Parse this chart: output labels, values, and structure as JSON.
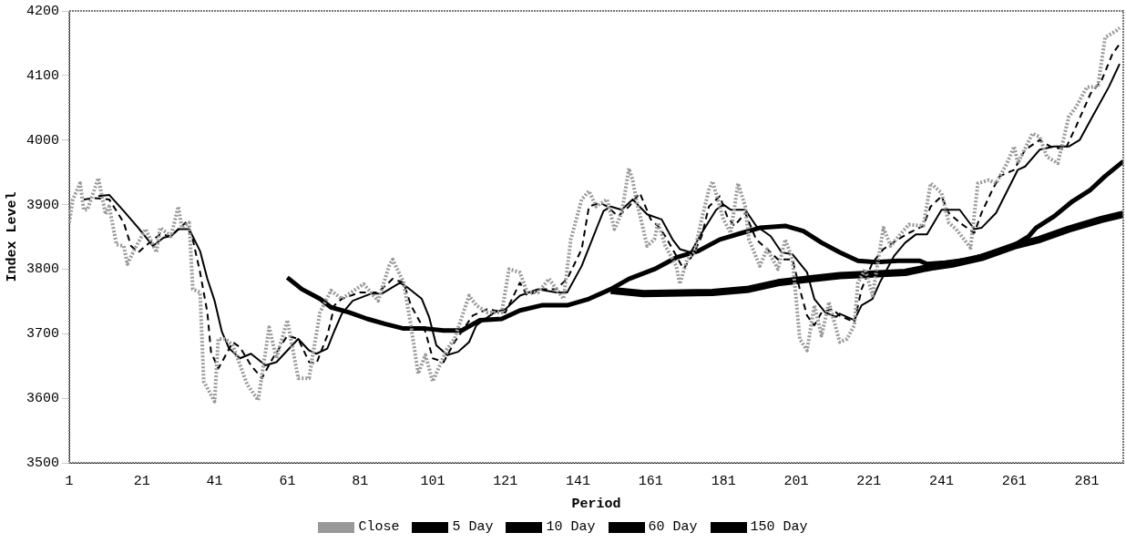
{
  "chart_data": {
    "type": "line",
    "xlabel": "Period",
    "ylabel": "Index Level",
    "xlim": [
      1,
      291
    ],
    "xticks": [
      1,
      21,
      41,
      61,
      81,
      101,
      121,
      141,
      161,
      181,
      201,
      221,
      241,
      261,
      281
    ],
    "ylim": [
      3500,
      4200
    ],
    "yticks": [
      3500,
      3600,
      3700,
      3800,
      3900,
      4000,
      4100,
      4200
    ],
    "grid": false,
    "legend": "bottom",
    "marker": "none",
    "series": [
      {
        "name": "Close",
        "color": "#999999",
        "line_style": "dotted",
        "x": [
          1,
          2,
          4,
          5,
          6,
          9,
          11,
          12,
          14,
          16,
          17,
          19,
          22,
          25,
          26,
          29,
          31,
          32,
          34,
          35,
          37,
          38,
          41,
          42,
          44,
          46,
          50,
          53,
          56,
          58,
          61,
          64,
          67,
          68,
          70,
          73,
          76,
          82,
          86,
          89,
          90,
          93,
          95,
          97,
          99,
          101,
          105,
          107,
          111,
          113,
          116,
          120,
          122,
          125,
          127,
          130,
          133,
          137,
          139,
          142,
          144,
          146,
          149,
          151,
          153,
          155,
          156,
          157,
          160,
          162,
          163,
          165,
          168,
          169,
          171,
          173,
          175,
          177,
          178,
          181,
          183,
          185,
          187,
          188,
          191,
          193,
          196,
          198,
          200,
          202,
          204,
          206,
          208,
          210,
          213,
          215,
          217,
          218,
          220,
          222,
          225,
          227,
          230,
          232,
          236,
          238,
          241,
          243,
          245,
          249,
          251,
          254,
          256,
          259,
          261,
          262,
          266,
          268,
          270,
          273,
          276,
          278,
          281,
          284,
          286,
          289,
          290
        ],
        "values": [
          3872,
          3908,
          3933,
          3892,
          3892,
          3941,
          3885,
          3897,
          3838,
          3836,
          3808,
          3831,
          3862,
          3826,
          3864,
          3851,
          3897,
          3864,
          3872,
          3769,
          3764,
          3626,
          3595,
          3692,
          3692,
          3682,
          3621,
          3597,
          3710,
          3662,
          3721,
          3631,
          3631,
          3667,
          3733,
          3767,
          3754,
          3777,
          3751,
          3805,
          3815,
          3779,
          3713,
          3638,
          3667,
          3626,
          3677,
          3692,
          3759,
          3744,
          3733,
          3733,
          3800,
          3795,
          3764,
          3764,
          3785,
          3754,
          3846,
          3908,
          3921,
          3897,
          3908,
          3862,
          3887,
          3956,
          3938,
          3908,
          3836,
          3846,
          3872,
          3836,
          3805,
          3777,
          3815,
          3826,
          3877,
          3923,
          3936,
          3877,
          3856,
          3933,
          3897,
          3846,
          3805,
          3831,
          3800,
          3846,
          3815,
          3692,
          3674,
          3744,
          3697,
          3749,
          3687,
          3692,
          3713,
          3779,
          3800,
          3759,
          3864,
          3836,
          3856,
          3869,
          3867,
          3933,
          3918,
          3872,
          3862,
          3833,
          3933,
          3938,
          3933,
          3964,
          3990,
          3964,
          4010,
          4005,
          3974,
          3964,
          4036,
          4051,
          4082,
          4082,
          4159,
          4169,
          4174
        ]
      },
      {
        "name": "5 Day",
        "color": "#000000",
        "line_style": "dashed",
        "x": [
          5,
          8,
          12,
          16,
          18,
          20,
          22,
          26,
          29,
          33,
          35,
          37,
          39,
          40,
          42,
          43,
          46,
          48,
          51,
          54,
          57,
          61,
          64,
          67,
          69,
          72,
          74,
          76,
          81,
          86,
          90,
          93,
          95,
          99,
          101,
          104,
          107,
          112,
          116,
          121,
          125,
          127,
          131,
          135,
          138,
          142,
          144,
          147,
          149,
          152,
          155,
          158,
          161,
          163,
          165,
          168,
          170,
          173,
          175,
          177,
          180,
          182,
          184,
          187,
          190,
          194,
          196,
          200,
          202,
          204,
          206,
          208,
          211,
          213,
          217,
          219,
          222,
          225,
          229,
          232,
          236,
          238,
          241,
          243,
          246,
          250,
          252,
          255,
          257,
          261,
          264,
          268,
          271,
          275,
          278,
          282,
          285,
          288,
          290
        ],
        "values": [
          3908,
          3910,
          3908,
          3872,
          3836,
          3826,
          3836,
          3854,
          3851,
          3872,
          3846,
          3795,
          3733,
          3672,
          3646,
          3656,
          3687,
          3679,
          3651,
          3631,
          3662,
          3697,
          3692,
          3656,
          3654,
          3697,
          3744,
          3754,
          3764,
          3764,
          3785,
          3779,
          3744,
          3703,
          3662,
          3656,
          3687,
          3728,
          3738,
          3733,
          3779,
          3759,
          3769,
          3769,
          3785,
          3831,
          3897,
          3903,
          3897,
          3882,
          3897,
          3918,
          3877,
          3867,
          3851,
          3821,
          3800,
          3826,
          3851,
          3897,
          3913,
          3882,
          3867,
          3887,
          3846,
          3826,
          3815,
          3815,
          3769,
          3728,
          3713,
          3733,
          3738,
          3728,
          3718,
          3769,
          3810,
          3831,
          3846,
          3856,
          3867,
          3897,
          3913,
          3887,
          3872,
          3856,
          3887,
          3923,
          3944,
          3954,
          3985,
          4000,
          3990,
          3985,
          4021,
          4072,
          4092,
          4133,
          4149
        ]
      },
      {
        "name": "10 Day",
        "color": "#000000",
        "line_style": "solid",
        "x": [
          9,
          12,
          16,
          20,
          24,
          27,
          29,
          31,
          34,
          37,
          39,
          41,
          43,
          45,
          48,
          51,
          55,
          58,
          61,
          64,
          67,
          69,
          72,
          74,
          76,
          79,
          84,
          87,
          92,
          94,
          98,
          100,
          102,
          105,
          108,
          111,
          113,
          118,
          121,
          125,
          130,
          135,
          138,
          142,
          146,
          148,
          150,
          153,
          156,
          160,
          164,
          167,
          169,
          172,
          175,
          179,
          181,
          183,
          187,
          190,
          194,
          197,
          200,
          204,
          206,
          209,
          212,
          213,
          217,
          219,
          222,
          224,
          228,
          231,
          234,
          237,
          241,
          246,
          250,
          252,
          256,
          262,
          264,
          268,
          272,
          276,
          279,
          282,
          287,
          290
        ],
        "values": [
          3913,
          3915,
          3890,
          3864,
          3836,
          3849,
          3851,
          3862,
          3862,
          3828,
          3785,
          3751,
          3703,
          3677,
          3662,
          3669,
          3651,
          3656,
          3674,
          3692,
          3674,
          3669,
          3677,
          3705,
          3731,
          3751,
          3762,
          3762,
          3779,
          3772,
          3754,
          3726,
          3682,
          3667,
          3672,
          3687,
          3713,
          3733,
          3738,
          3759,
          3769,
          3764,
          3764,
          3805,
          3862,
          3890,
          3897,
          3892,
          3908,
          3885,
          3877,
          3846,
          3831,
          3826,
          3856,
          3892,
          3900,
          3892,
          3892,
          3867,
          3851,
          3826,
          3823,
          3795,
          3754,
          3733,
          3726,
          3731,
          3721,
          3744,
          3754,
          3779,
          3821,
          3841,
          3854,
          3854,
          3892,
          3892,
          3862,
          3864,
          3887,
          3954,
          3959,
          3985,
          3990,
          3990,
          4000,
          4031,
          4082,
          4118
        ]
      },
      {
        "name": "60 Day",
        "color": "#000000",
        "line_style": "solid",
        "x": [
          61,
          65,
          70,
          73,
          78,
          83,
          88,
          93,
          99,
          104,
          109,
          114,
          120,
          125,
          131,
          138,
          144,
          150,
          155,
          162,
          168,
          174,
          180,
          186,
          191,
          198,
          203,
          208,
          213,
          218,
          223,
          229,
          235,
          237,
          242,
          249,
          255,
          261,
          265,
          267,
          272,
          277,
          282,
          286,
          291
        ],
        "values": [
          3787,
          3769,
          3754,
          3741,
          3733,
          3723,
          3715,
          3708,
          3708,
          3705,
          3705,
          3721,
          3723,
          3736,
          3744,
          3744,
          3754,
          3769,
          3785,
          3800,
          3818,
          3828,
          3846,
          3856,
          3864,
          3867,
          3859,
          3841,
          3826,
          3813,
          3811,
          3813,
          3813,
          3808,
          3810,
          3815,
          3826,
          3837,
          3851,
          3864,
          3882,
          3905,
          3923,
          3944,
          3967
        ]
      },
      {
        "name": "150 Day",
        "color": "#000000",
        "line_style": "solid",
        "x": [
          150,
          159,
          178,
          188,
          196,
          205,
          213,
          221,
          231,
          238,
          244,
          252,
          261,
          268,
          276,
          285,
          291
        ],
        "values": [
          3767,
          3762,
          3764,
          3769,
          3779,
          3785,
          3790,
          3792,
          3795,
          3803,
          3808,
          3818,
          3836,
          3846,
          3862,
          3877,
          3885
        ]
      }
    ]
  }
}
